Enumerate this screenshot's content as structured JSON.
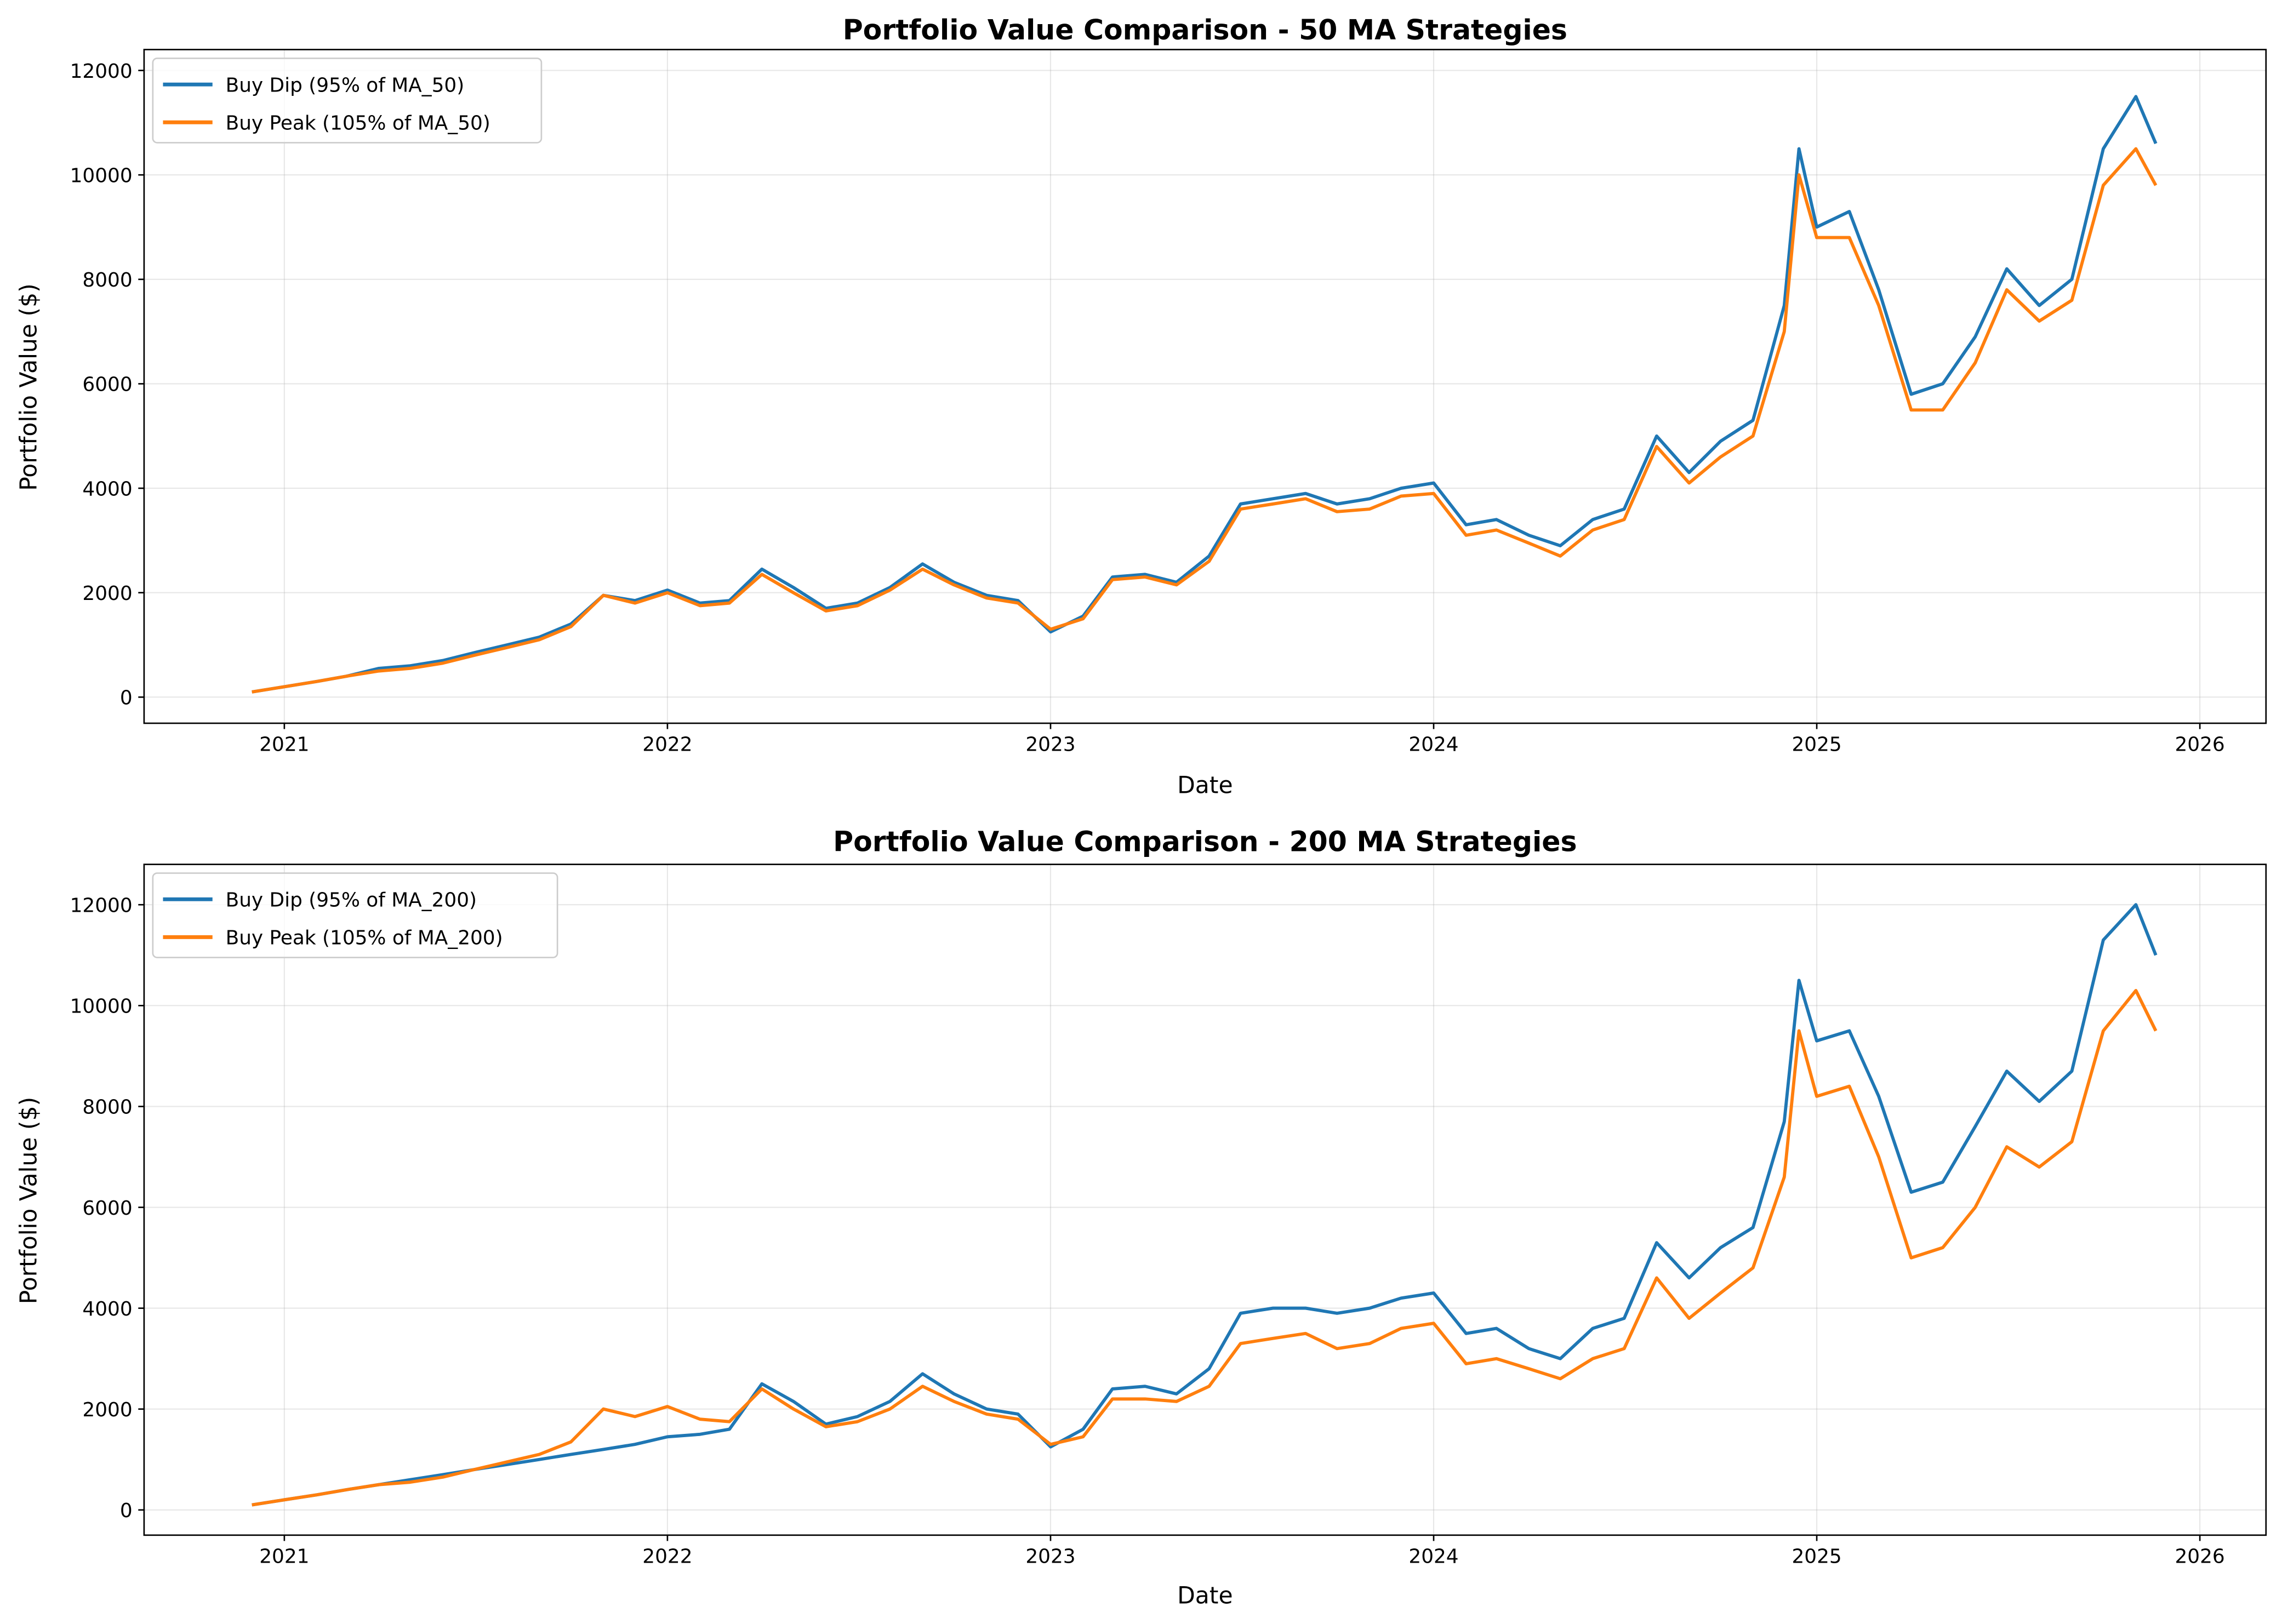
{
  "chart_data": [
    {
      "type": "line",
      "title": "Portfolio Value Comparison - 50 MA Strategies",
      "xlabel": "Date",
      "ylabel": "Portfolio Value ($)",
      "xlim": [
        "2020-08-20",
        "2026-03-05"
      ],
      "ylim": [
        -500,
        12400
      ],
      "xticks": [
        "2021",
        "2022",
        "2023",
        "2024",
        "2025",
        "2026"
      ],
      "yticks": [
        0,
        2000,
        4000,
        6000,
        8000,
        10000,
        12000
      ],
      "grid": true,
      "legend": "top-left",
      "x": [
        "2020-12-01",
        "2021-01-01",
        "2021-02-01",
        "2021-03-01",
        "2021-04-01",
        "2021-05-01",
        "2021-06-01",
        "2021-07-01",
        "2021-08-01",
        "2021-09-01",
        "2021-10-01",
        "2021-11-01",
        "2021-12-01",
        "2022-01-01",
        "2022-02-01",
        "2022-03-01",
        "2022-04-01",
        "2022-05-01",
        "2022-06-01",
        "2022-07-01",
        "2022-08-01",
        "2022-09-01",
        "2022-10-01",
        "2022-11-01",
        "2022-12-01",
        "2023-01-01",
        "2023-02-01",
        "2023-03-01",
        "2023-04-01",
        "2023-05-01",
        "2023-06-01",
        "2023-07-01",
        "2023-08-01",
        "2023-09-01",
        "2023-10-01",
        "2023-11-01",
        "2023-12-01",
        "2024-01-01",
        "2024-02-01",
        "2024-03-01",
        "2024-04-01",
        "2024-05-01",
        "2024-06-01",
        "2024-07-01",
        "2024-08-01",
        "2024-09-01",
        "2024-10-01",
        "2024-11-01",
        "2024-12-01",
        "2024-12-15",
        "2025-01-01",
        "2025-02-01",
        "2025-03-01",
        "2025-04-01",
        "2025-05-01",
        "2025-06-01",
        "2025-07-01",
        "2025-08-01",
        "2025-09-01",
        "2025-10-01",
        "2025-11-01",
        "2025-11-20"
      ],
      "series": [
        {
          "name": "Buy Dip (95% of MA_50)",
          "color": "#1f77b4",
          "values": [
            100,
            200,
            300,
            400,
            550,
            600,
            700,
            850,
            1000,
            1150,
            1400,
            1950,
            1850,
            2050,
            1800,
            1850,
            2450,
            2100,
            1700,
            1800,
            2100,
            2550,
            2200,
            1950,
            1850,
            1250,
            1550,
            2300,
            2350,
            2200,
            2700,
            3700,
            3800,
            3900,
            3700,
            3800,
            4000,
            4100,
            3300,
            3400,
            3100,
            2900,
            3400,
            3600,
            5000,
            4300,
            4900,
            5300,
            7500,
            10500,
            9000,
            9300,
            7800,
            5800,
            6000,
            6900,
            8200,
            7500,
            8000,
            10500,
            11500,
            10600
          ]
        },
        {
          "name": "Buy Peak (105% of MA_50)",
          "color": "#ff7f0e",
          "values": [
            100,
            200,
            300,
            400,
            500,
            550,
            650,
            800,
            950,
            1100,
            1350,
            1950,
            1800,
            2000,
            1750,
            1800,
            2350,
            2000,
            1650,
            1750,
            2050,
            2450,
            2150,
            1900,
            1800,
            1300,
            1500,
            2250,
            2300,
            2150,
            2600,
            3600,
            3700,
            3800,
            3550,
            3600,
            3850,
            3900,
            3100,
            3200,
            2950,
            2700,
            3200,
            3400,
            4800,
            4100,
            4600,
            5000,
            7000,
            10000,
            8800,
            8800,
            7500,
            5500,
            5500,
            6400,
            7800,
            7200,
            7600,
            9800,
            10500,
            9800
          ]
        }
      ]
    },
    {
      "type": "line",
      "title": "Portfolio Value Comparison - 200 MA Strategies",
      "xlabel": "Date",
      "ylabel": "Portfolio Value ($)",
      "xlim": [
        "2020-08-20",
        "2026-03-05"
      ],
      "ylim": [
        -500,
        12800
      ],
      "xticks": [
        "2021",
        "2022",
        "2023",
        "2024",
        "2025",
        "2026"
      ],
      "yticks": [
        0,
        2000,
        4000,
        6000,
        8000,
        10000,
        12000
      ],
      "grid": true,
      "legend": "top-left",
      "x": [
        "2020-12-01",
        "2021-01-01",
        "2021-02-01",
        "2021-03-01",
        "2021-04-01",
        "2021-05-01",
        "2021-06-01",
        "2021-07-01",
        "2021-08-01",
        "2021-09-01",
        "2021-10-01",
        "2021-11-01",
        "2021-12-01",
        "2022-01-01",
        "2022-02-01",
        "2022-03-01",
        "2022-04-01",
        "2022-05-01",
        "2022-06-01",
        "2022-07-01",
        "2022-08-01",
        "2022-09-01",
        "2022-10-01",
        "2022-11-01",
        "2022-12-01",
        "2023-01-01",
        "2023-02-01",
        "2023-03-01",
        "2023-04-01",
        "2023-05-01",
        "2023-06-01",
        "2023-07-01",
        "2023-08-01",
        "2023-09-01",
        "2023-10-01",
        "2023-11-01",
        "2023-12-01",
        "2024-01-01",
        "2024-02-01",
        "2024-03-01",
        "2024-04-01",
        "2024-05-01",
        "2024-06-01",
        "2024-07-01",
        "2024-08-01",
        "2024-09-01",
        "2024-10-01",
        "2024-11-01",
        "2024-12-01",
        "2024-12-15",
        "2025-01-01",
        "2025-02-01",
        "2025-03-01",
        "2025-04-01",
        "2025-05-01",
        "2025-06-01",
        "2025-07-01",
        "2025-08-01",
        "2025-09-01",
        "2025-10-01",
        "2025-11-01",
        "2025-11-20"
      ],
      "series": [
        {
          "name": "Buy Dip (95% of MA_200)",
          "color": "#1f77b4",
          "values": [
            100,
            200,
            300,
            400,
            500,
            600,
            700,
            800,
            900,
            1000,
            1100,
            1200,
            1300,
            1450,
            1500,
            1600,
            2500,
            2150,
            1700,
            1850,
            2150,
            2700,
            2300,
            2000,
            1900,
            1250,
            1600,
            2400,
            2450,
            2300,
            2800,
            3900,
            4000,
            4000,
            3900,
            4000,
            4200,
            4300,
            3500,
            3600,
            3200,
            3000,
            3600,
            3800,
            5300,
            4600,
            5200,
            5600,
            7700,
            10500,
            9300,
            9500,
            8200,
            6300,
            6500,
            7600,
            8700,
            8100,
            8700,
            11300,
            12000,
            11000
          ]
        },
        {
          "name": "Buy Peak (105% of MA_200)",
          "color": "#ff7f0e",
          "values": [
            100,
            200,
            300,
            400,
            500,
            550,
            650,
            800,
            950,
            1100,
            1350,
            2000,
            1850,
            2050,
            1800,
            1750,
            2400,
            2000,
            1650,
            1750,
            2000,
            2450,
            2150,
            1900,
            1800,
            1300,
            1450,
            2200,
            2200,
            2150,
            2450,
            3300,
            3400,
            3500,
            3200,
            3300,
            3600,
            3700,
            2900,
            3000,
            2800,
            2600,
            3000,
            3200,
            4600,
            3800,
            4300,
            4800,
            6600,
            9500,
            8200,
            8400,
            7000,
            5000,
            5200,
            6000,
            7200,
            6800,
            7300,
            9500,
            10300,
            9500
          ]
        }
      ]
    }
  ]
}
